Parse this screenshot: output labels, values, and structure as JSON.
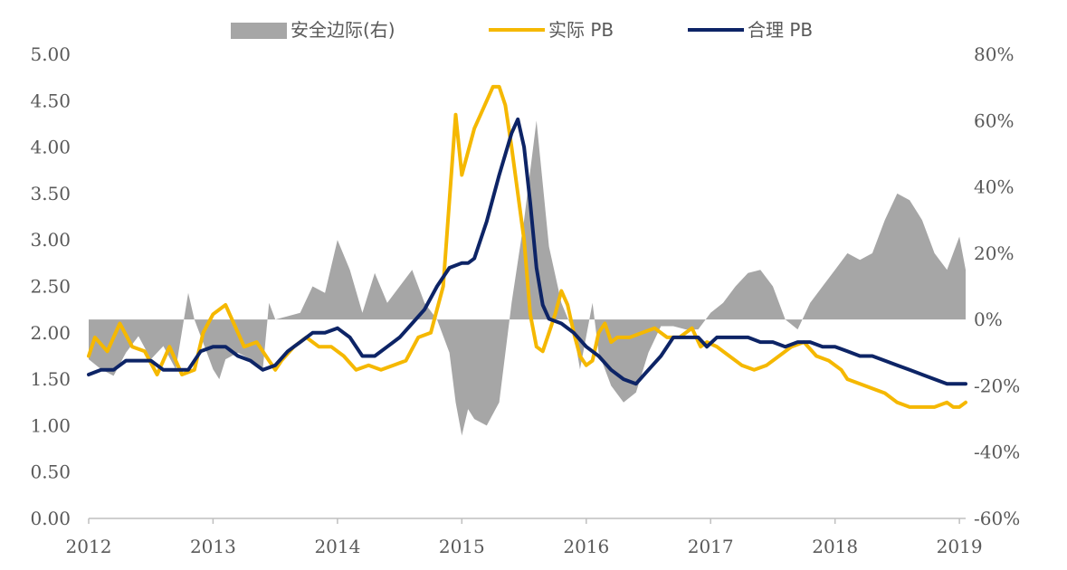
{
  "chart_data": {
    "type": "line",
    "title": "",
    "colors": {
      "safety_margin": "#a6a6a6",
      "actual_pb": "#f5b800",
      "fair_pb": "#0d2466",
      "axis": "#bfbfbf",
      "text": "#595959"
    },
    "legend": {
      "placement": "top-center",
      "items": [
        "安全边际(右)",
        "实际 PB",
        "合理 PB"
      ]
    },
    "x_axis": {
      "ticks": [
        "2012",
        "2013",
        "2014",
        "2015",
        "2016",
        "2017",
        "2018",
        "2019"
      ],
      "range": [
        2012.0,
        2019.05
      ]
    },
    "y_left": {
      "ticks": [
        "0.00",
        "0.50",
        "1.00",
        "1.50",
        "2.00",
        "2.50",
        "3.00",
        "3.50",
        "4.00",
        "4.50",
        "5.00"
      ],
      "range": [
        0,
        5
      ]
    },
    "y_right": {
      "ticks": [
        "-60%",
        "-40%",
        "-20%",
        "0%",
        "20%",
        "40%",
        "60%",
        "80%"
      ],
      "range": [
        -60,
        80
      ]
    },
    "grid": false,
    "series": [
      {
        "name": "安全边际(右)",
        "kind": "area",
        "axis": "right",
        "unit": "%",
        "x": [
          2012.0,
          2012.1,
          2012.2,
          2012.3,
          2012.4,
          2012.5,
          2012.6,
          2012.7,
          2012.8,
          2012.85,
          2012.9,
          2012.95,
          2013.0,
          2013.05,
          2013.1,
          2013.2,
          2013.3,
          2013.4,
          2013.45,
          2013.5,
          2013.6,
          2013.7,
          2013.8,
          2013.9,
          2014.0,
          2014.1,
          2014.2,
          2014.3,
          2014.4,
          2014.5,
          2014.6,
          2014.7,
          2014.8,
          2014.9,
          2014.95,
          2015.0,
          2015.05,
          2015.1,
          2015.2,
          2015.3,
          2015.4,
          2015.5,
          2015.6,
          2015.7,
          2015.8,
          2015.9,
          2015.95,
          2016.0,
          2016.05,
          2016.1,
          2016.2,
          2016.3,
          2016.4,
          2016.5,
          2016.6,
          2016.7,
          2016.8,
          2016.9,
          2017.0,
          2017.1,
          2017.2,
          2017.3,
          2017.4,
          2017.5,
          2017.6,
          2017.7,
          2017.8,
          2017.9,
          2018.0,
          2018.1,
          2018.2,
          2018.3,
          2018.4,
          2018.5,
          2018.6,
          2018.7,
          2018.8,
          2018.9,
          2019.0,
          2019.05
        ],
        "values": [
          -12,
          -15,
          -17,
          -10,
          -5,
          -12,
          -8,
          -15,
          8,
          0,
          -5,
          -10,
          -15,
          -18,
          -12,
          -10,
          -12,
          -15,
          5,
          0,
          1,
          2,
          10,
          8,
          24,
          15,
          2,
          14,
          5,
          10,
          15,
          5,
          0,
          -10,
          -25,
          -35,
          -27,
          -30,
          -32,
          -25,
          5,
          30,
          60,
          22,
          5,
          -4,
          -15,
          -5,
          5,
          -10,
          -20,
          -25,
          -22,
          -10,
          -2,
          -2,
          -3,
          -3,
          2,
          5,
          10,
          14,
          15,
          10,
          0,
          -3,
          5,
          10,
          15,
          20,
          18,
          20,
          30,
          38,
          36,
          30,
          20,
          15,
          25,
          15
        ]
      },
      {
        "name": "实际 PB",
        "kind": "line",
        "axis": "left",
        "x": [
          2012.0,
          2012.05,
          2012.15,
          2012.25,
          2012.35,
          2012.45,
          2012.55,
          2012.65,
          2012.75,
          2012.85,
          2012.92,
          2013.0,
          2013.1,
          2013.15,
          2013.25,
          2013.35,
          2013.45,
          2013.5,
          2013.55,
          2013.65,
          2013.75,
          2013.85,
          2013.95,
          2014.05,
          2014.15,
          2014.25,
          2014.35,
          2014.45,
          2014.55,
          2014.65,
          2014.75,
          2014.85,
          2014.95,
          2015.0,
          2015.05,
          2015.1,
          2015.15,
          2015.25,
          2015.3,
          2015.35,
          2015.4,
          2015.45,
          2015.5,
          2015.55,
          2015.6,
          2015.65,
          2015.7,
          2015.75,
          2015.8,
          2015.85,
          2015.9,
          2015.95,
          2016.0,
          2016.05,
          2016.1,
          2016.15,
          2016.2,
          2016.25,
          2016.35,
          2016.45,
          2016.55,
          2016.65,
          2016.75,
          2016.85,
          2016.92,
          2016.97,
          2017.05,
          2017.15,
          2017.25,
          2017.35,
          2017.45,
          2017.55,
          2017.65,
          2017.75,
          2017.85,
          2017.95,
          2018.05,
          2018.1,
          2018.2,
          2018.3,
          2018.4,
          2018.5,
          2018.6,
          2018.7,
          2018.8,
          2018.9,
          2018.95,
          2019.0,
          2019.05
        ],
        "values": [
          1.75,
          1.95,
          1.8,
          2.1,
          1.85,
          1.8,
          1.55,
          1.85,
          1.55,
          1.6,
          2.0,
          2.2,
          2.3,
          2.15,
          1.85,
          1.9,
          1.7,
          1.6,
          1.7,
          1.85,
          1.95,
          1.85,
          1.85,
          1.75,
          1.6,
          1.65,
          1.6,
          1.65,
          1.7,
          1.95,
          2.0,
          2.5,
          4.35,
          3.7,
          3.95,
          4.2,
          4.35,
          4.65,
          4.65,
          4.45,
          4.0,
          3.5,
          3.0,
          2.2,
          1.85,
          1.8,
          2.0,
          2.2,
          2.45,
          2.3,
          2.0,
          1.75,
          1.65,
          1.7,
          2.0,
          2.1,
          1.9,
          1.95,
          1.95,
          2.0,
          2.05,
          1.95,
          1.95,
          2.05,
          1.85,
          1.9,
          1.85,
          1.75,
          1.65,
          1.6,
          1.65,
          1.75,
          1.85,
          1.9,
          1.75,
          1.7,
          1.6,
          1.5,
          1.45,
          1.4,
          1.35,
          1.25,
          1.2,
          1.2,
          1.2,
          1.25,
          1.2,
          1.2,
          1.25
        ]
      },
      {
        "name": "合理 PB",
        "kind": "line",
        "axis": "left",
        "x": [
          2012.0,
          2012.1,
          2012.2,
          2012.3,
          2012.4,
          2012.5,
          2012.6,
          2012.7,
          2012.8,
          2012.9,
          2013.0,
          2013.1,
          2013.2,
          2013.3,
          2013.4,
          2013.5,
          2013.6,
          2013.7,
          2013.8,
          2013.9,
          2014.0,
          2014.1,
          2014.2,
          2014.3,
          2014.4,
          2014.5,
          2014.6,
          2014.7,
          2014.8,
          2014.9,
          2015.0,
          2015.05,
          2015.1,
          2015.2,
          2015.3,
          2015.4,
          2015.45,
          2015.5,
          2015.55,
          2015.6,
          2015.65,
          2015.7,
          2015.8,
          2015.9,
          2016.0,
          2016.1,
          2016.2,
          2016.3,
          2016.4,
          2016.5,
          2016.6,
          2016.7,
          2016.8,
          2016.9,
          2016.97,
          2017.05,
          2017.15,
          2017.3,
          2017.4,
          2017.5,
          2017.6,
          2017.7,
          2017.8,
          2017.9,
          2018.0,
          2018.1,
          2018.2,
          2018.3,
          2018.4,
          2018.5,
          2018.6,
          2018.7,
          2018.8,
          2018.9,
          2019.0,
          2019.05
        ],
        "values": [
          1.55,
          1.6,
          1.6,
          1.7,
          1.7,
          1.7,
          1.6,
          1.6,
          1.6,
          1.8,
          1.85,
          1.85,
          1.75,
          1.7,
          1.6,
          1.65,
          1.8,
          1.9,
          2.0,
          2.0,
          2.05,
          1.95,
          1.75,
          1.75,
          1.85,
          1.95,
          2.1,
          2.25,
          2.5,
          2.7,
          2.75,
          2.75,
          2.8,
          3.2,
          3.7,
          4.15,
          4.3,
          4.0,
          3.4,
          2.7,
          2.3,
          2.15,
          2.1,
          2.0,
          1.85,
          1.75,
          1.6,
          1.5,
          1.45,
          1.6,
          1.75,
          1.95,
          1.95,
          1.95,
          1.85,
          1.95,
          1.95,
          1.95,
          1.9,
          1.9,
          1.85,
          1.9,
          1.9,
          1.85,
          1.85,
          1.8,
          1.75,
          1.75,
          1.7,
          1.65,
          1.6,
          1.55,
          1.5,
          1.45,
          1.45,
          1.45
        ]
      }
    ]
  }
}
